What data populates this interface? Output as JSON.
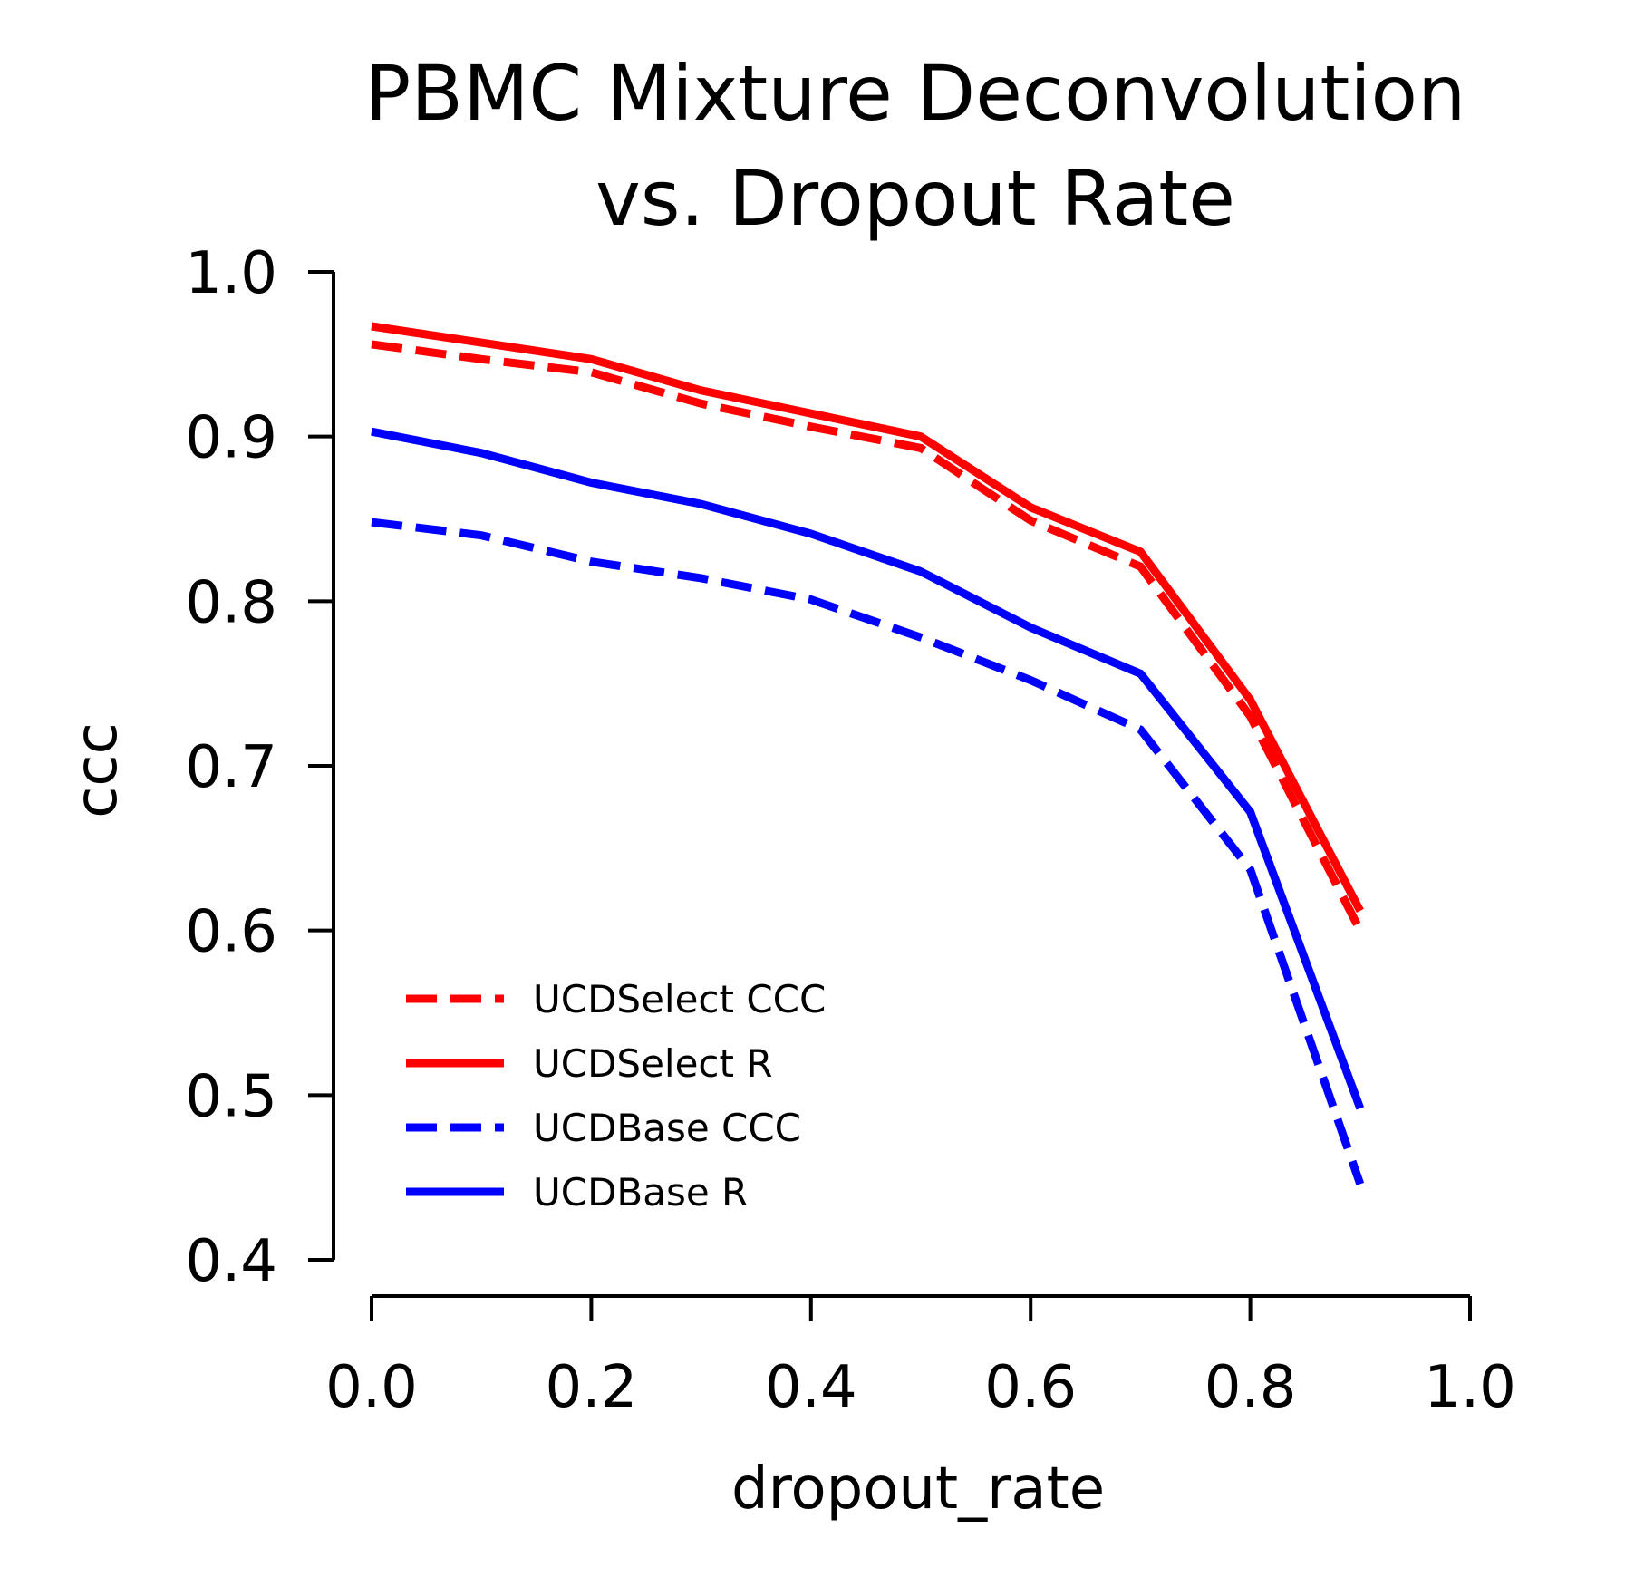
{
  "chart_data": {
    "type": "line",
    "title_lines": [
      "PBMC Mixture Deconvolution",
      "vs. Dropout Rate"
    ],
    "xlabel": "dropout_rate",
    "ylabel": "ccc",
    "xlim": [
      0.0,
      1.0
    ],
    "ylim": [
      0.4,
      1.0
    ],
    "x_ticks": [
      "0.0",
      "0.2",
      "0.4",
      "0.6",
      "0.8",
      "1.0"
    ],
    "y_ticks": [
      "0.4",
      "0.5",
      "0.6",
      "0.7",
      "0.8",
      "0.9",
      "1.0"
    ],
    "grid": false,
    "legend_position": "lower-left",
    "x": [
      0.0,
      0.1,
      0.2,
      0.3,
      0.4,
      0.5,
      0.6,
      0.7,
      0.8,
      0.9
    ],
    "series": [
      {
        "name": "UCDSelect CCC",
        "color": "#ff0000",
        "style": "dashed",
        "values": [
          0.956,
          0.947,
          0.939,
          0.92,
          0.906,
          0.893,
          0.849,
          0.821,
          0.73,
          0.6
        ]
      },
      {
        "name": "UCDSelect R",
        "color": "#ff0000",
        "style": "solid",
        "values": [
          0.967,
          0.957,
          0.947,
          0.928,
          0.914,
          0.9,
          0.857,
          0.83,
          0.74,
          0.612
        ]
      },
      {
        "name": "UCDBase CCC",
        "color": "#0000ff",
        "style": "dashed",
        "values": [
          0.848,
          0.84,
          0.824,
          0.814,
          0.801,
          0.778,
          0.752,
          0.722,
          0.637,
          0.446
        ]
      },
      {
        "name": "UCDBase R",
        "color": "#0000ff",
        "style": "solid",
        "values": [
          0.903,
          0.89,
          0.872,
          0.859,
          0.841,
          0.818,
          0.784,
          0.756,
          0.672,
          0.492
        ]
      }
    ]
  }
}
